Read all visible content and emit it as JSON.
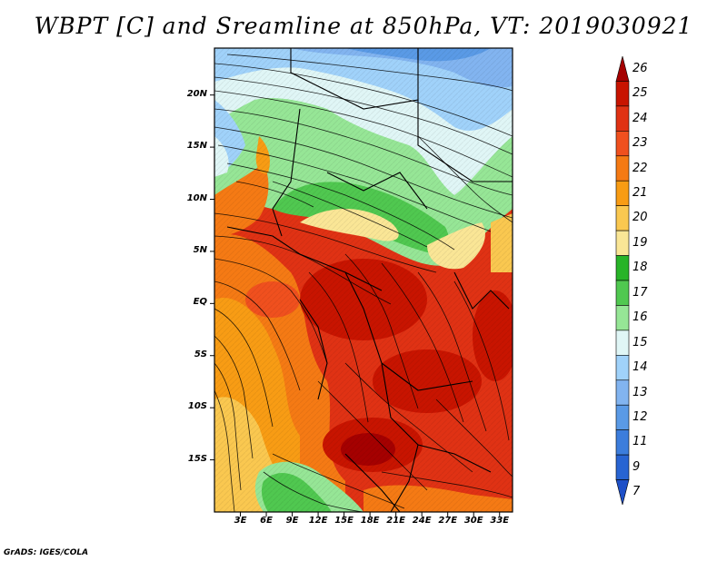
{
  "title": "WBPT [C] and Sreamline at 850hPa, VT: 2019030921",
  "credit": "GrADS: IGES/COLA",
  "lat_labels": [
    "20N",
    "15N",
    "10N",
    "5N",
    "EQ",
    "5S",
    "10S",
    "15S"
  ],
  "lon_labels": [
    "3E",
    "6E",
    "9E",
    "12E",
    "15E",
    "18E",
    "21E",
    "24E",
    "27E",
    "30E",
    "33E"
  ],
  "colorbar": {
    "labels": [
      "26",
      "25",
      "24",
      "23",
      "22",
      "21",
      "20",
      "19",
      "18",
      "17",
      "16",
      "15",
      "14",
      "13",
      "12",
      "11",
      "9",
      "7"
    ],
    "colors": [
      "#a50000",
      "#c81400",
      "#e03214",
      "#f0501e",
      "#f57a14",
      "#f89c14",
      "#fac850",
      "#fae696",
      "#28b428",
      "#50c850",
      "#96e696",
      "#e0f6f6",
      "#a0d2fa",
      "#82b4f0",
      "#5a9ae6",
      "#3c7ddc",
      "#2864d2",
      "#1e50c8"
    ]
  },
  "chart_data": {
    "type": "heatmap",
    "title": "WBPT [C] and Sreamline at 850hPa, VT: 2019030921",
    "x_ticks": [
      "3E",
      "6E",
      "9E",
      "12E",
      "15E",
      "18E",
      "21E",
      "24E",
      "27E",
      "30E",
      "33E"
    ],
    "y_ticks": [
      "20N",
      "15N",
      "10N",
      "5N",
      "EQ",
      "5S",
      "10S",
      "15S"
    ],
    "lon_range": [
      0,
      34.5
    ],
    "lat_range": [
      -20,
      24.5
    ],
    "colorbar_levels": [
      7,
      9,
      11,
      12,
      13,
      14,
      15,
      16,
      17,
      18,
      19,
      20,
      21,
      22,
      23,
      24,
      25,
      26
    ],
    "overlay": "streamlines"
  }
}
